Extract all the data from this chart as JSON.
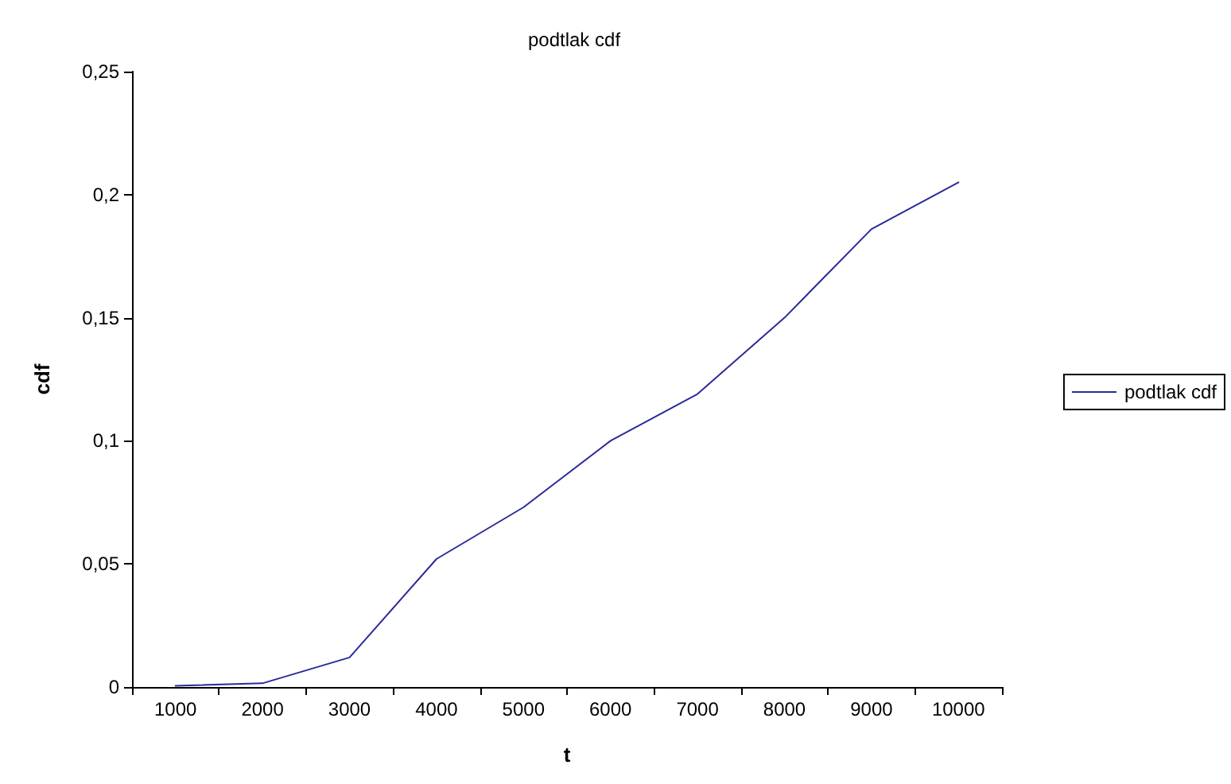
{
  "chart_data": {
    "type": "line",
    "title": "podtlak cdf",
    "xlabel": "t",
    "ylabel": "cdf",
    "categories": [
      "1000",
      "2000",
      "3000",
      "4000",
      "5000",
      "6000",
      "7000",
      "8000",
      "9000",
      "10000"
    ],
    "series": [
      {
        "name": "podtlak cdf",
        "color": "#2a2a9a",
        "values": [
          0.0005,
          0.0015,
          0.012,
          0.052,
          0.073,
          0.1,
          0.119,
          0.15,
          0.186,
          0.205
        ]
      }
    ],
    "ylim": [
      0,
      0.25
    ],
    "yticks": [
      {
        "value": 0,
        "label": "0"
      },
      {
        "value": 0.05,
        "label": "0,05"
      },
      {
        "value": 0.1,
        "label": "0,1"
      },
      {
        "value": 0.15,
        "label": "0,15"
      },
      {
        "value": 0.2,
        "label": "0,2"
      },
      {
        "value": 0.25,
        "label": "0,25"
      }
    ],
    "legend": "right",
    "marker": "none",
    "line_style": "solid"
  }
}
